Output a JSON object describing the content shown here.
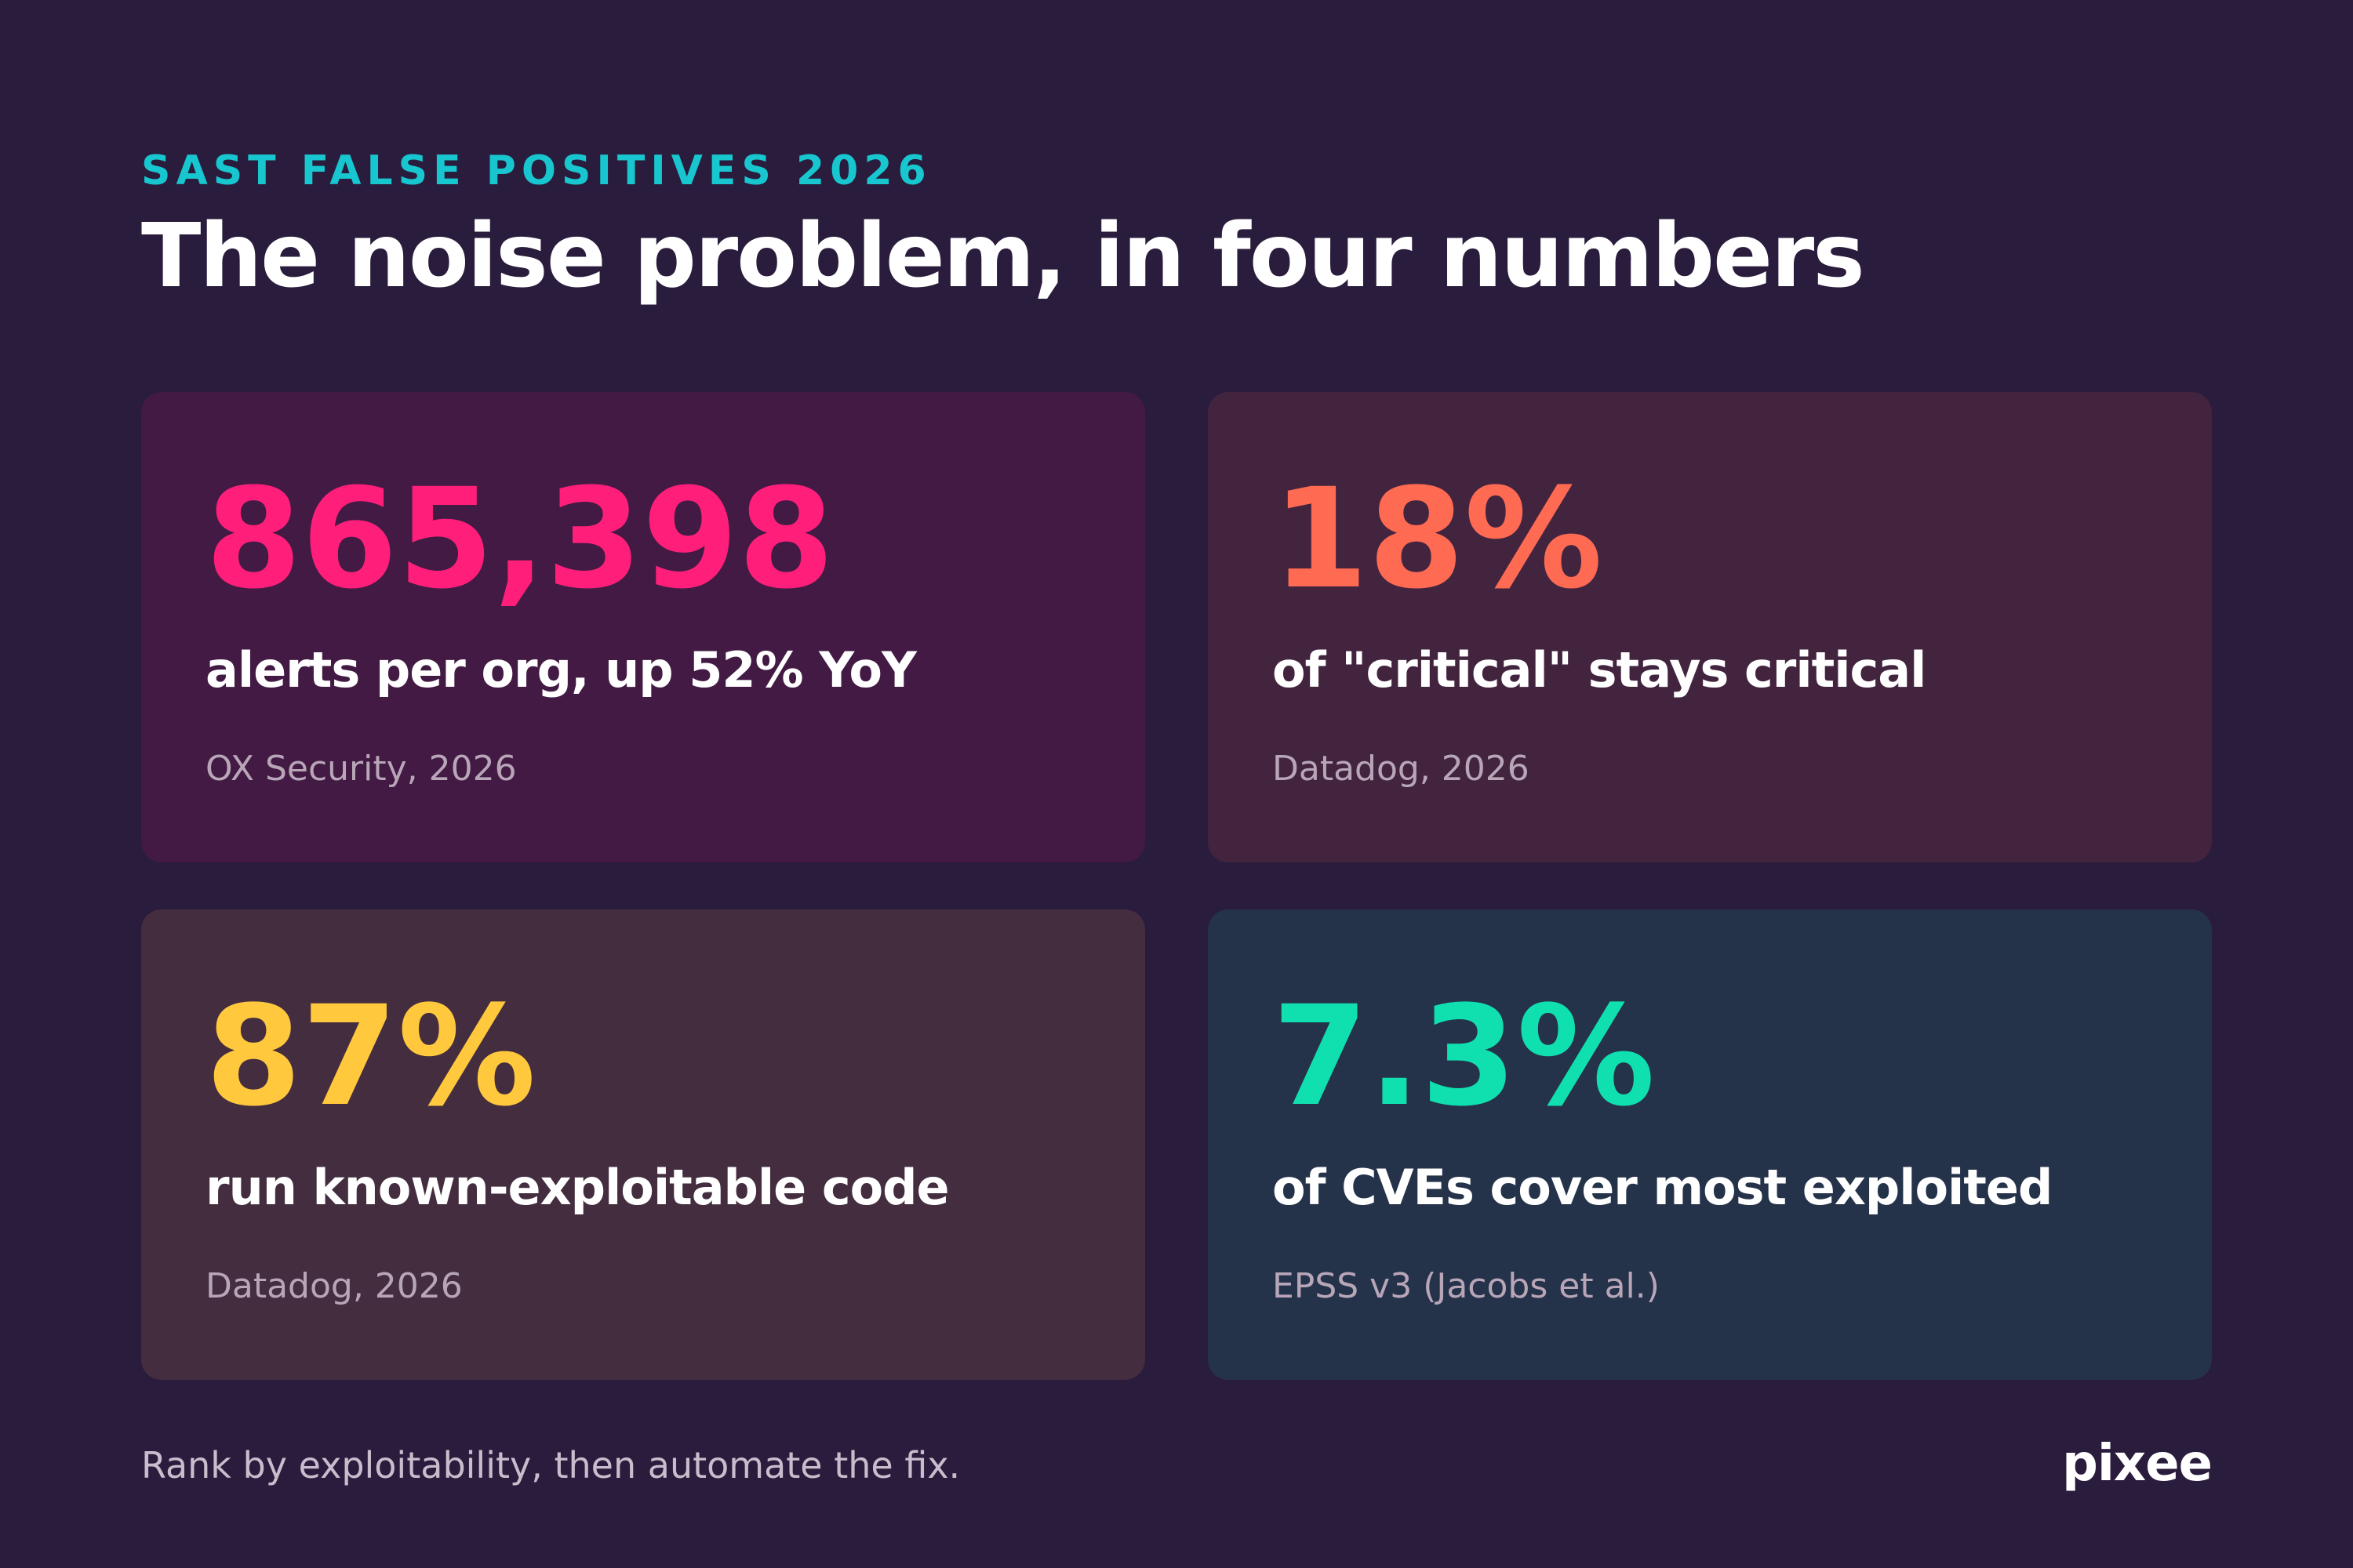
{
  "header": {
    "eyebrow": "SAST FALSE POSITIVES 2026",
    "title": "The noise problem, in four numbers"
  },
  "stats": [
    {
      "value": "865,398",
      "label": "alerts per org, up 52% YoY",
      "source": "OX Security, 2026",
      "color": "#ff1f7a"
    },
    {
      "value": "18%",
      "label": "of \"critical\" stays critical",
      "source": "Datadog, 2026",
      "color": "#ff6a52"
    },
    {
      "value": "87%",
      "label": "run known-exploitable code",
      "source": "Datadog, 2026",
      "color": "#ffc83d"
    },
    {
      "value": "7.3%",
      "label": "of CVEs cover most exploited",
      "source": "EPSS v3 (Jacobs et al.)",
      "color": "#10e0b0"
    }
  ],
  "footer": {
    "text": "Rank by exploitability, then automate the fix.",
    "brand": "pixee"
  }
}
